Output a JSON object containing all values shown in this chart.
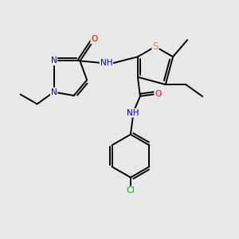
{
  "bg_color": "#e8e8e8",
  "bond_color": "#000000",
  "atom_colors": {
    "N": "#0000cc",
    "O": "#ff0000",
    "S": "#ccaa00",
    "Cl": "#00aa00",
    "C": "#000000",
    "H": "#008888"
  },
  "font_size": 7.5,
  "bond_width": 1.4,
  "figsize": [
    3.0,
    3.0
  ],
  "dpi": 100
}
